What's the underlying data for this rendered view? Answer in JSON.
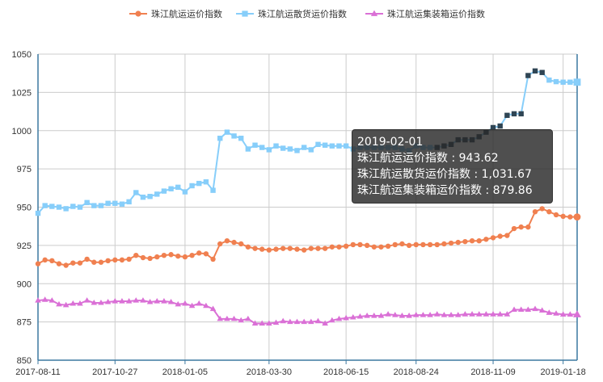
{
  "chart_data": {
    "type": "line",
    "legend_position": "top",
    "grid": true,
    "ylim": [
      850,
      1050
    ],
    "yticks": [
      850,
      875,
      900,
      925,
      950,
      975,
      1000,
      1025,
      1050
    ],
    "xticks": [
      "2017-08-11",
      "2017-10-27",
      "2018-01-05",
      "2018-03-30",
      "2018-06-15",
      "2018-08-24",
      "2018-11-09",
      "2019-01-18"
    ],
    "colors": {
      "series_0": "#f08050",
      "series_1": "#87cefa",
      "series_2": "#da70d6",
      "highlight_1": "#2f4554",
      "axis": "#3c78a0",
      "grid": "#cccccc"
    },
    "x": [
      "2017-08-11",
      "2017-08-18",
      "2017-08-25",
      "2017-09-01",
      "2017-09-08",
      "2017-09-15",
      "2017-09-22",
      "2017-09-29",
      "2017-10-06",
      "2017-10-13",
      "2017-10-20",
      "2017-10-27",
      "2017-11-03",
      "2017-11-10",
      "2017-11-17",
      "2017-11-24",
      "2017-12-01",
      "2017-12-08",
      "2017-12-15",
      "2017-12-22",
      "2017-12-29",
      "2018-01-05",
      "2018-01-12",
      "2018-01-19",
      "2018-01-26",
      "2018-02-02",
      "2018-02-09",
      "2018-02-16",
      "2018-02-23",
      "2018-03-02",
      "2018-03-09",
      "2018-03-16",
      "2018-03-23",
      "2018-03-30",
      "2018-04-06",
      "2018-04-13",
      "2018-04-20",
      "2018-04-27",
      "2018-05-04",
      "2018-05-11",
      "2018-05-18",
      "2018-05-25",
      "2018-06-01",
      "2018-06-08",
      "2018-06-15",
      "2018-06-22",
      "2018-06-29",
      "2018-07-06",
      "2018-07-13",
      "2018-07-20",
      "2018-07-27",
      "2018-08-03",
      "2018-08-10",
      "2018-08-17",
      "2018-08-24",
      "2018-08-31",
      "2018-09-07",
      "2018-09-14",
      "2018-09-21",
      "2018-09-28",
      "2018-10-05",
      "2018-10-12",
      "2018-10-19",
      "2018-10-26",
      "2018-11-02",
      "2018-11-09",
      "2018-11-16",
      "2018-11-23",
      "2018-11-30",
      "2018-12-07",
      "2018-12-14",
      "2018-12-21",
      "2018-12-28",
      "2019-01-04",
      "2019-01-11",
      "2019-01-18",
      "2019-01-25",
      "2019-02-01"
    ],
    "series": [
      {
        "name": "珠江航运运价指数",
        "marker": "circle",
        "values": [
          913,
          915.5,
          915,
          913,
          912,
          913.5,
          913.5,
          916,
          914,
          914,
          915,
          915.5,
          915.5,
          916,
          918.5,
          917,
          916.5,
          917.5,
          918.5,
          919,
          918,
          917.5,
          918.5,
          920,
          919.5,
          916,
          926,
          928,
          927,
          926,
          924,
          923,
          922.5,
          922,
          922.5,
          923,
          923,
          922.5,
          922,
          923,
          923,
          923,
          924,
          924,
          924.5,
          925.5,
          925.5,
          925,
          924,
          924,
          924.5,
          925.5,
          926,
          925,
          925.5,
          925.5,
          925.5,
          925.5,
          926,
          926.5,
          927,
          927.5,
          928,
          928,
          929,
          930,
          931,
          931.5,
          936,
          937,
          937,
          947,
          949,
          947,
          945,
          944,
          943.62,
          943.62
        ]
      },
      {
        "name": "珠江航运散货运价指数",
        "marker": "square",
        "values": [
          946,
          951,
          950.5,
          950,
          949,
          950.5,
          950,
          953,
          951,
          951,
          952.5,
          952.5,
          952,
          953.5,
          959.5,
          956.5,
          957,
          958.5,
          960.5,
          962,
          963,
          960,
          964,
          965.5,
          966.5,
          961,
          995,
          999,
          996.5,
          995,
          988,
          990.5,
          989,
          987.5,
          990,
          988.5,
          988,
          987,
          989,
          987.5,
          991,
          990.5,
          990,
          990,
          990,
          988,
          989,
          989,
          989,
          989,
          989,
          989,
          988,
          987,
          990,
          989,
          989,
          989,
          990,
          991,
          994,
          994,
          994,
          996,
          999,
          1002,
          1003,
          1010,
          1011,
          1011,
          1036,
          1039,
          1038,
          1033,
          1032,
          1031.67,
          1031.67,
          1031.67
        ]
      },
      {
        "name": "珠江航运集装箱运价指数",
        "marker": "triangle",
        "values": [
          889,
          889.5,
          889,
          886.5,
          886,
          887,
          887,
          889,
          887.5,
          887.5,
          888,
          888.5,
          888.5,
          888.5,
          889,
          889,
          888,
          888.5,
          888.5,
          888,
          886.5,
          887,
          885.5,
          887,
          885.5,
          883.5,
          877,
          877,
          877,
          876,
          877,
          874,
          874,
          874,
          874.5,
          875.5,
          875,
          875,
          875,
          875,
          875.5,
          874,
          876,
          877,
          877.5,
          878,
          878.5,
          879,
          879,
          879,
          880,
          879.5,
          879,
          879,
          879.5,
          879.5,
          879.5,
          880,
          879.5,
          879.5,
          879.5,
          880,
          880,
          880,
          880,
          880,
          880,
          880,
          883,
          883,
          883,
          883.5,
          882.5,
          881,
          880.5,
          879.86,
          879.86,
          879.86
        ]
      }
    ]
  },
  "tooltip": {
    "date": "2019-02-01",
    "rows": [
      {
        "label": "珠江航运运价指数 : ",
        "value": "943.62"
      },
      {
        "label": "珠江航运散货运价指数 : ",
        "value": "1,031.67"
      },
      {
        "label": "珠江航运集装箱运价指数 : ",
        "value": "879.86"
      }
    ]
  }
}
